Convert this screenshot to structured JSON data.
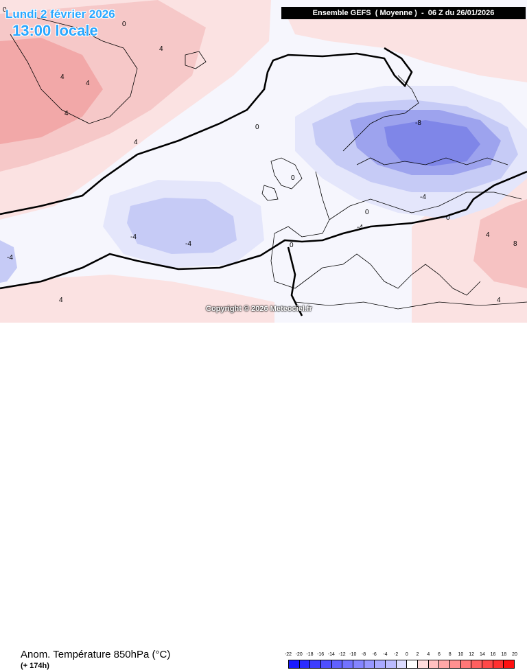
{
  "header": {
    "date": "Lundi 2 février 2026",
    "local_time": "13:00 locale",
    "run_info": "Ensemble GEFS  ( Moyenne )  -  06 Z du 26/01/2026"
  },
  "copyright": "Copyright © 2026 Meteociel.fr",
  "footer": {
    "parameter": "Anom. Température 850hPa (°C)",
    "lead_time": "(+ 174h)"
  },
  "legend": {
    "labels": [
      "-22",
      "-20",
      "-18",
      "-16",
      "-14",
      "-12",
      "-10",
      "-8",
      "-6",
      "-4",
      "-2",
      "0",
      "2",
      "4",
      "6",
      "8",
      "10",
      "12",
      "14",
      "16",
      "18",
      "20"
    ],
    "colors": [
      "#1a1aff",
      "#2b2bff",
      "#3d3dff",
      "#4f4fff",
      "#6161ff",
      "#7373ff",
      "#8585ff",
      "#9797ff",
      "#a9a9ff",
      "#bbbbff",
      "#dcdcff",
      "#ffffff",
      "#ffdcdc",
      "#ffc0c0",
      "#ffa8a8",
      "#ff9090",
      "#ff7878",
      "#ff6060",
      "#ff4848",
      "#ff3030",
      "#ff1010"
    ]
  },
  "contour_labels": {
    "zero": "0",
    "plus4": "4",
    "minus4": "-4",
    "plus8": "8",
    "minus8": "-8"
  },
  "colors": {
    "warm_light": "#fbe2e2",
    "warm_mid": "#f8c4c4",
    "warm_strong": "#f2a3a3",
    "cold_light": "#e4e6fb",
    "cold_mid": "#c6cbf6",
    "cold_strong": "#9da3ee",
    "cold_core": "#7f86e8",
    "title_blue": "#2aa7ff"
  }
}
